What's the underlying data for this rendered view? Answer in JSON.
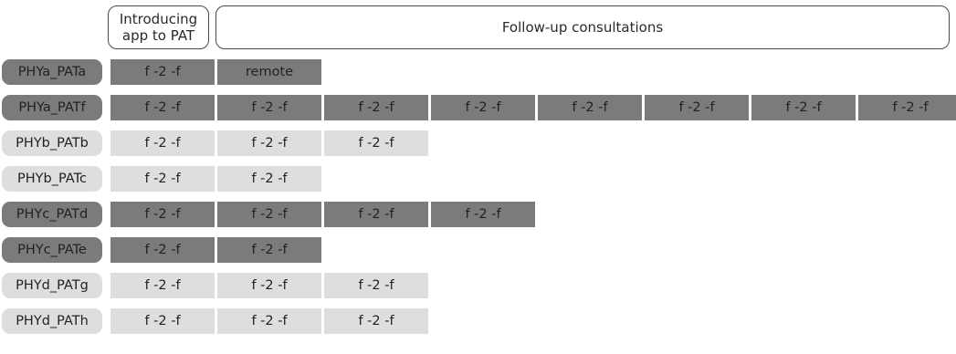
{
  "headers": {
    "intro_lines": "Introducing\napp to PAT",
    "follow_up": "Follow-up consultations"
  },
  "colors": {
    "dark": "#7b7b7b",
    "light": "#dedede"
  },
  "rows": [
    {
      "label": "PHYa_PATa",
      "shade": "dark",
      "cells": [
        "f -2 -f",
        "remote"
      ]
    },
    {
      "label": "PHYa_PATf",
      "shade": "dark",
      "cells": [
        "f -2 -f",
        "f -2 -f",
        "f -2 -f",
        "f -2 -f",
        "f -2 -f",
        "f -2 -f",
        "f -2 -f",
        "f -2 -f"
      ]
    },
    {
      "label": "PHYb_PATb",
      "shade": "light",
      "cells": [
        "f -2 -f",
        "f -2 -f",
        "f -2 -f"
      ]
    },
    {
      "label": "PHYb_PATc",
      "shade": "light",
      "cells": [
        "f -2 -f",
        "f -2 -f"
      ]
    },
    {
      "label": "PHYc_PATd",
      "shade": "dark",
      "cells": [
        "f -2 -f",
        "f -2 -f",
        "f -2 -f",
        "f -2 -f"
      ]
    },
    {
      "label": "PHYc_PATe",
      "shade": "dark",
      "cells": [
        "f -2 -f",
        "f -2 -f"
      ]
    },
    {
      "label": "PHYd_PATg",
      "shade": "light",
      "cells": [
        "f -2 -f",
        "f -2 -f",
        "f -2 -f"
      ]
    },
    {
      "label": "PHYd_PATh",
      "shade": "light",
      "cells": [
        "f -2 -f",
        "f -2 -f",
        "f -2 -f"
      ]
    }
  ]
}
